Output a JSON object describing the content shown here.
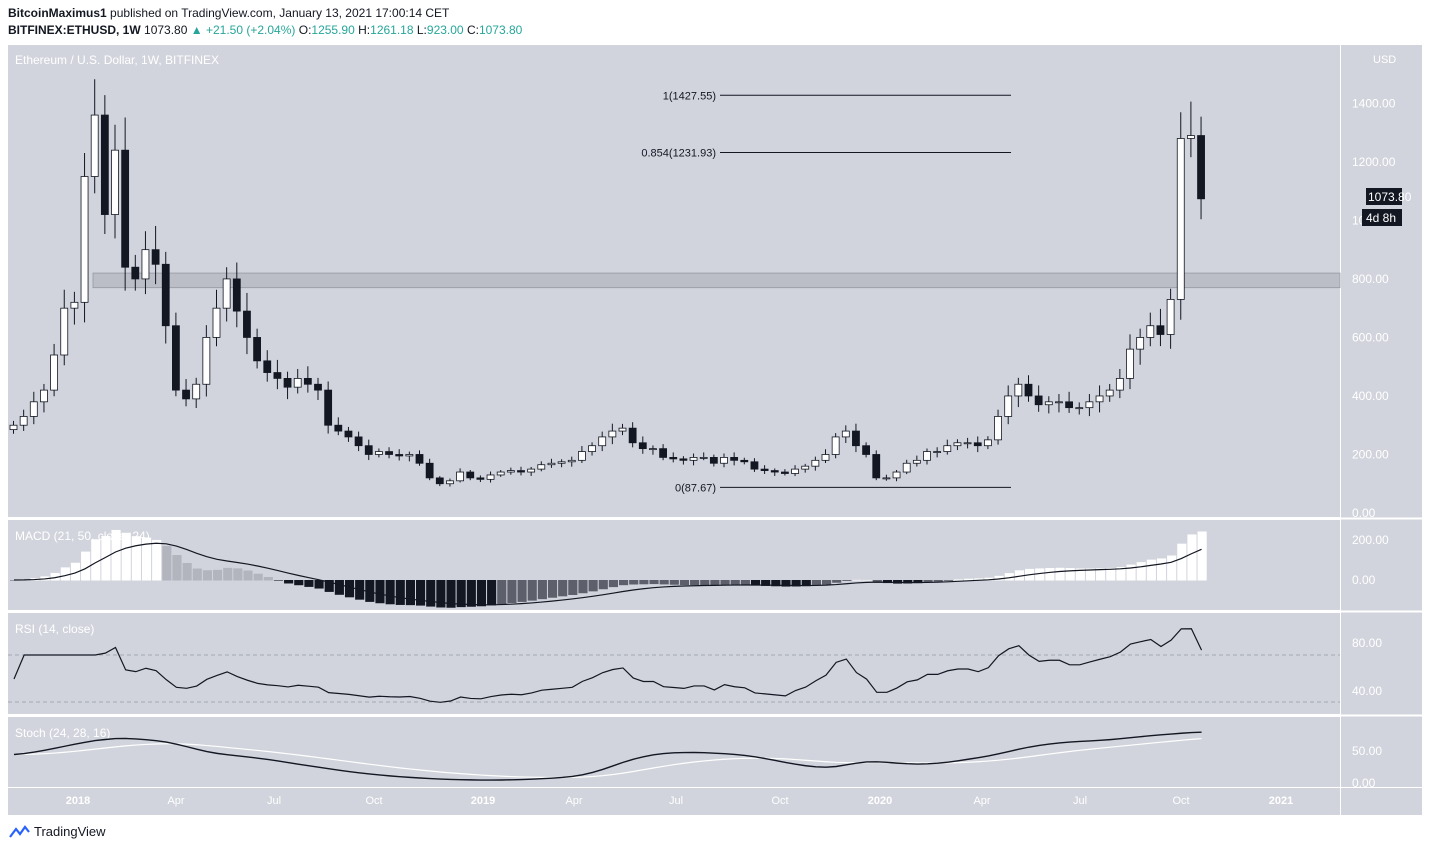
{
  "header": {
    "author": "BitcoinMaximus1",
    "published_text": "published on TradingView.com, January 13, 2021 17:00:14 CET",
    "symbol": "BITFINEX:ETHUSD, 1W",
    "last": "1073.80",
    "change": "+21.50 (+2.04%)",
    "o_label": "O:",
    "o": "1255.90",
    "h_label": "H:",
    "h": "1261.18",
    "l_label": "L:",
    "l": "923.00",
    "c_label": "C:",
    "c": "1073.80"
  },
  "chart_data": {
    "type": "candlestick",
    "title": "Ethereum / U.S. Dollar, 1W, BITFINEX",
    "currency": "USD",
    "price_ticks": [
      "1400.00",
      "1200.00",
      "1000.00",
      "800.00",
      "600.00",
      "400.00",
      "200.00",
      "0.00"
    ],
    "ylim": [
      0,
      1530
    ],
    "x_ticks": [
      "2018",
      "Apr",
      "Jul",
      "Oct",
      "2019",
      "Apr",
      "Jul",
      "Oct",
      "2020",
      "Apr",
      "Jul",
      "Oct",
      "2021"
    ],
    "last_price_label": "1073.80",
    "countdown_label": "4d 8h",
    "resistance_zone": [
      770,
      820
    ],
    "fib_levels": [
      {
        "label": "1(1427.55)",
        "value": 1427.55
      },
      {
        "label": "0.854(1231.93)",
        "value": 1231.93
      },
      {
        "label": "0(87.67)",
        "value": 87.67
      }
    ],
    "weekly_close": [
      300,
      330,
      380,
      420,
      540,
      700,
      720,
      1150,
      1360,
      1020,
      1240,
      840,
      800,
      900,
      850,
      640,
      420,
      390,
      440,
      600,
      700,
      800,
      690,
      600,
      520,
      480,
      460,
      430,
      460,
      440,
      420,
      300,
      280,
      260,
      230,
      200,
      210,
      200,
      195,
      200,
      170,
      120,
      100,
      110,
      140,
      120,
      115,
      130,
      140,
      145,
      140,
      150,
      165,
      170,
      175,
      180,
      210,
      230,
      260,
      280,
      290,
      240,
      220,
      220,
      190,
      185,
      180,
      190,
      190,
      170,
      190,
      180,
      175,
      150,
      145,
      140,
      135,
      150,
      160,
      180,
      200,
      260,
      280,
      230,
      200,
      120,
      120,
      140,
      170,
      180,
      210,
      210,
      230,
      240,
      240,
      230,
      250,
      330,
      400,
      440,
      400,
      370,
      380,
      380,
      360,
      360,
      380,
      400,
      420,
      460,
      560,
      600,
      640,
      610,
      730,
      1280,
      1290,
      1073.8
    ],
    "macd": {
      "label": "MACD (21, 50, close, 24)",
      "ticks": [
        "200.00",
        "0.00"
      ]
    },
    "rsi": {
      "label": "RSI (14, close)",
      "ticks": [
        "80.00",
        "40.00"
      ],
      "levels": [
        70,
        30
      ]
    },
    "stoch": {
      "label": "Stoch (24, 28, 16)",
      "ticks": [
        "50.00",
        "0.00"
      ]
    }
  },
  "footer": {
    "brand": "TradingView"
  }
}
